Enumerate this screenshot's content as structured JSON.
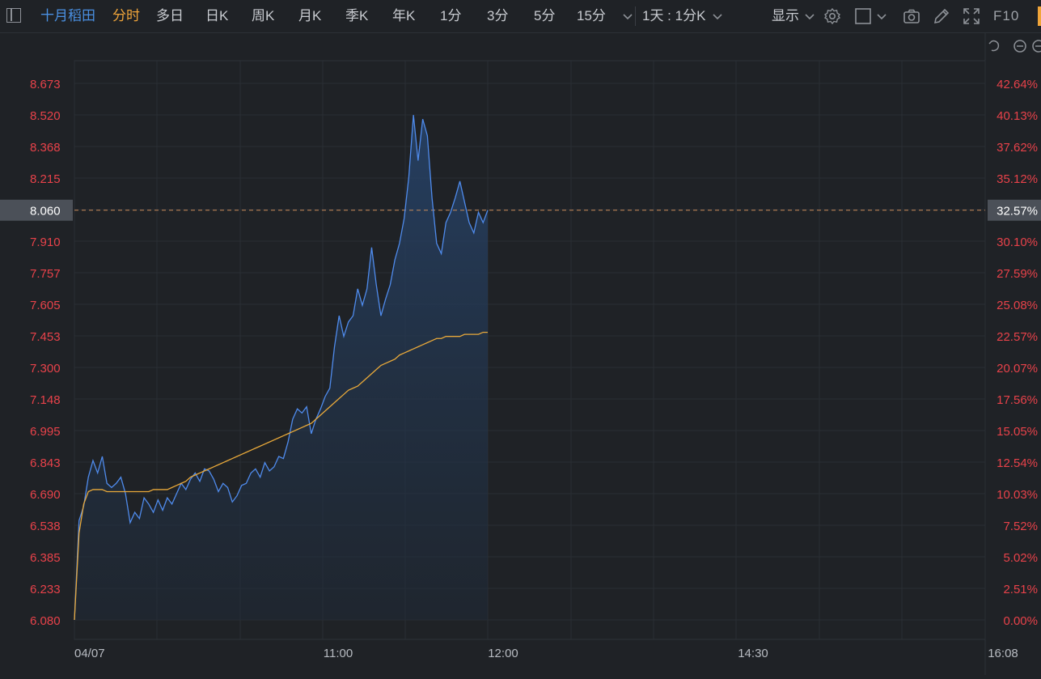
{
  "toolbar": {
    "stock_name": "十月稻田",
    "tabs": [
      "分时",
      "多日",
      "日K",
      "周K",
      "月K",
      "季K",
      "年K",
      "1分",
      "3分",
      "5分",
      "15分"
    ],
    "active_tab": "分时",
    "period_select": "1天 : 1分K",
    "display_label": "显示",
    "f10_label": "F10"
  },
  "chart_data": {
    "type": "line",
    "x_ticks": [
      "04/07",
      "11:00",
      "12:00",
      "14:30",
      "16:08"
    ],
    "y_ticks_price": [
      "8.673",
      "8.520",
      "8.368",
      "8.215",
      "8.060",
      "7.910",
      "7.757",
      "7.605",
      "7.453",
      "7.300",
      "7.148",
      "6.995",
      "6.843",
      "6.690",
      "6.538",
      "6.385",
      "6.233",
      "6.080"
    ],
    "y_ticks_pct": [
      "42.64%",
      "40.13%",
      "37.62%",
      "35.12%",
      "32.57%",
      "30.10%",
      "27.59%",
      "25.08%",
      "22.57%",
      "20.07%",
      "17.56%",
      "15.05%",
      "12.54%",
      "10.03%",
      "7.52%",
      "5.02%",
      "2.51%",
      "0.00%"
    ],
    "ylim": [
      6.08,
      8.673
    ],
    "current_price": "8.060",
    "current_pct": "32.57%",
    "series": [
      {
        "values": [
          6.08,
          6.56,
          6.63,
          6.77,
          6.85,
          6.79,
          6.87,
          6.74,
          6.72,
          6.74,
          6.77,
          6.69,
          6.55,
          6.6,
          6.57,
          6.67,
          6.64,
          6.6,
          6.66,
          6.61,
          6.67,
          6.64,
          6.69,
          6.74,
          6.71,
          6.76,
          6.79,
          6.75,
          6.81,
          6.8,
          6.76,
          6.7,
          6.74,
          6.72,
          6.65,
          6.68,
          6.73,
          6.74,
          6.79,
          6.81,
          6.77,
          6.84,
          6.8,
          6.82,
          6.87,
          6.86,
          6.94,
          7.05,
          7.1,
          7.08,
          7.11,
          6.98,
          7.05,
          7.1,
          7.16,
          7.2,
          7.4,
          7.55,
          7.45,
          7.52,
          7.55,
          7.68,
          7.6,
          7.68,
          7.88,
          7.7,
          7.55,
          7.63,
          7.7,
          7.82,
          7.9,
          8.02,
          8.22,
          8.52,
          8.3,
          8.5,
          8.42,
          8.12,
          7.9,
          7.85,
          8.0,
          8.05,
          8.12,
          8.2,
          8.1,
          8.0,
          7.95,
          8.05,
          8.0,
          8.06
        ],
        "color": "#4f8bec"
      },
      {
        "values": [
          6.08,
          6.5,
          6.64,
          6.7,
          6.71,
          6.71,
          6.71,
          6.7,
          6.7,
          6.7,
          6.7,
          6.7,
          6.7,
          6.7,
          6.7,
          6.7,
          6.7,
          6.71,
          6.71,
          6.71,
          6.71,
          6.72,
          6.73,
          6.74,
          6.75,
          6.77,
          6.78,
          6.79,
          6.8,
          6.81,
          6.82,
          6.83,
          6.84,
          6.85,
          6.86,
          6.87,
          6.88,
          6.89,
          6.9,
          6.91,
          6.92,
          6.93,
          6.94,
          6.95,
          6.96,
          6.97,
          6.98,
          6.99,
          7.0,
          7.01,
          7.02,
          7.03,
          7.05,
          7.07,
          7.09,
          7.11,
          7.13,
          7.15,
          7.17,
          7.19,
          7.2,
          7.21,
          7.23,
          7.25,
          7.27,
          7.29,
          7.31,
          7.32,
          7.33,
          7.34,
          7.36,
          7.37,
          7.38,
          7.39,
          7.4,
          7.41,
          7.42,
          7.43,
          7.44,
          7.44,
          7.45,
          7.45,
          7.45,
          7.45,
          7.46,
          7.46,
          7.46,
          7.46,
          7.47,
          7.47
        ],
        "color": "#e9a93a"
      }
    ],
    "line_color": "#4f8bec",
    "avg_color": "#e9a93a",
    "fill_color": "#1f3552",
    "grid": true,
    "background": "#1f2226"
  }
}
